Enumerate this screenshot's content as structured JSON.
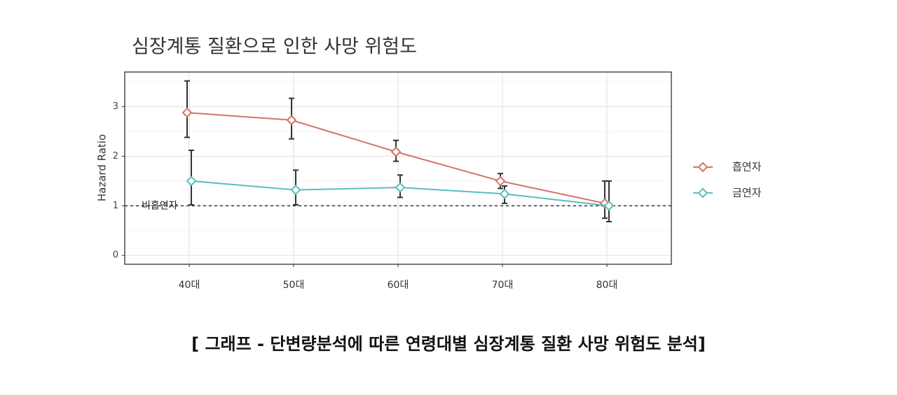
{
  "chart_data": {
    "type": "line",
    "title": "심장계통 질환으로 인한 사망 위험도",
    "y_label": "Hazard Ratio",
    "categories": [
      "40대",
      "50대",
      "60대",
      "70대",
      "80대"
    ],
    "series": [
      {
        "name": "흡연자",
        "color": "#d0766a",
        "values": [
          2.88,
          2.73,
          2.09,
          1.5,
          1.05
        ],
        "lower": [
          2.38,
          2.35,
          1.9,
          1.35,
          0.75
        ],
        "upper": [
          3.52,
          3.17,
          2.32,
          1.65,
          1.5
        ]
      },
      {
        "name": "금연자",
        "color": "#5bbcbc",
        "values": [
          1.5,
          1.32,
          1.37,
          1.24,
          1.0
        ],
        "lower": [
          1.02,
          1.02,
          1.17,
          1.05,
          0.68
        ],
        "upper": [
          2.12,
          1.72,
          1.62,
          1.4,
          1.5
        ]
      }
    ],
    "reference_line": {
      "value": 1,
      "label": "비흡연자"
    },
    "ylim": [
      -0.18,
      3.7
    ],
    "yticks": [
      0,
      1,
      2,
      3
    ],
    "grid": true,
    "legend": "right",
    "caption": "[ 그래프 - 단변량분석에 따른 연령대별 심장계통 질환 사망 위험도 분석]"
  }
}
